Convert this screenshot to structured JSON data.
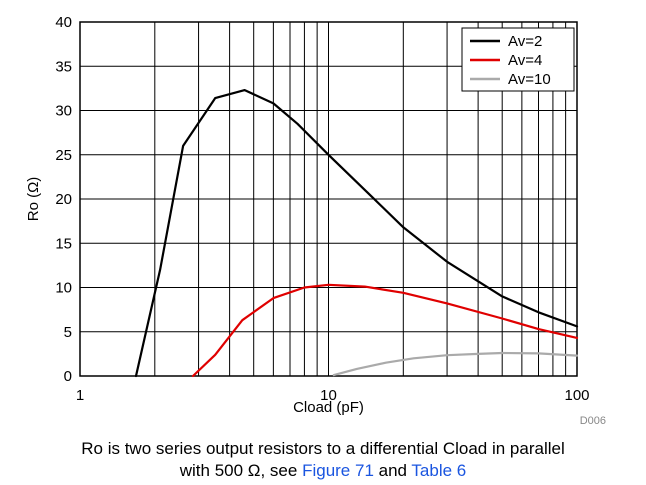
{
  "chart_data": {
    "type": "line",
    "xscale": "log",
    "xlim": [
      1,
      100
    ],
    "ylim": [
      0,
      40
    ],
    "xticks": [
      1,
      10,
      100
    ],
    "xticklabels": [
      "1",
      "10",
      "100"
    ],
    "yticks": [
      0,
      5,
      10,
      15,
      20,
      25,
      30,
      35,
      40
    ],
    "yticklabels": [
      "0",
      "5",
      "10",
      "15",
      "20",
      "25",
      "30",
      "35",
      "40"
    ],
    "xlabel": "Cload (pF)",
    "ylabel": "Ro (Ω)",
    "grid": true,
    "legend_position": "top-right",
    "watermark": "D006",
    "series": [
      {
        "name": "Av=2",
        "color": "#000000",
        "x": [
          1.68,
          2.1,
          2.6,
          3.5,
          4.6,
          6,
          7.5,
          10,
          15,
          20,
          30,
          50,
          70,
          100
        ],
        "y": [
          0,
          12,
          26,
          31.4,
          32.3,
          30.8,
          28.5,
          25,
          20.2,
          16.8,
          12.9,
          9,
          7.2,
          5.6
        ]
      },
      {
        "name": "Av=4",
        "color": "#e00000",
        "x": [
          2.85,
          3.5,
          4.5,
          6,
          8,
          10,
          14,
          20,
          30,
          50,
          70,
          100
        ],
        "y": [
          0,
          2.4,
          6.3,
          8.8,
          10,
          10.3,
          10.1,
          9.4,
          8.2,
          6.5,
          5.3,
          4.3
        ]
      },
      {
        "name": "Av=10",
        "color": "#aaaaaa",
        "x": [
          10.5,
          13,
          17,
          22,
          30,
          40,
          50,
          70,
          100
        ],
        "y": [
          0.1,
          0.8,
          1.5,
          2,
          2.35,
          2.5,
          2.6,
          2.55,
          2.3
        ]
      }
    ]
  },
  "caption": {
    "line1": "Ro is two series output resistors to a differential Cload in parallel",
    "line2_prefix": "with 500 Ω, see ",
    "figure_link": "Figure 71",
    "and_text": " and ",
    "table_link": "Table 6"
  }
}
